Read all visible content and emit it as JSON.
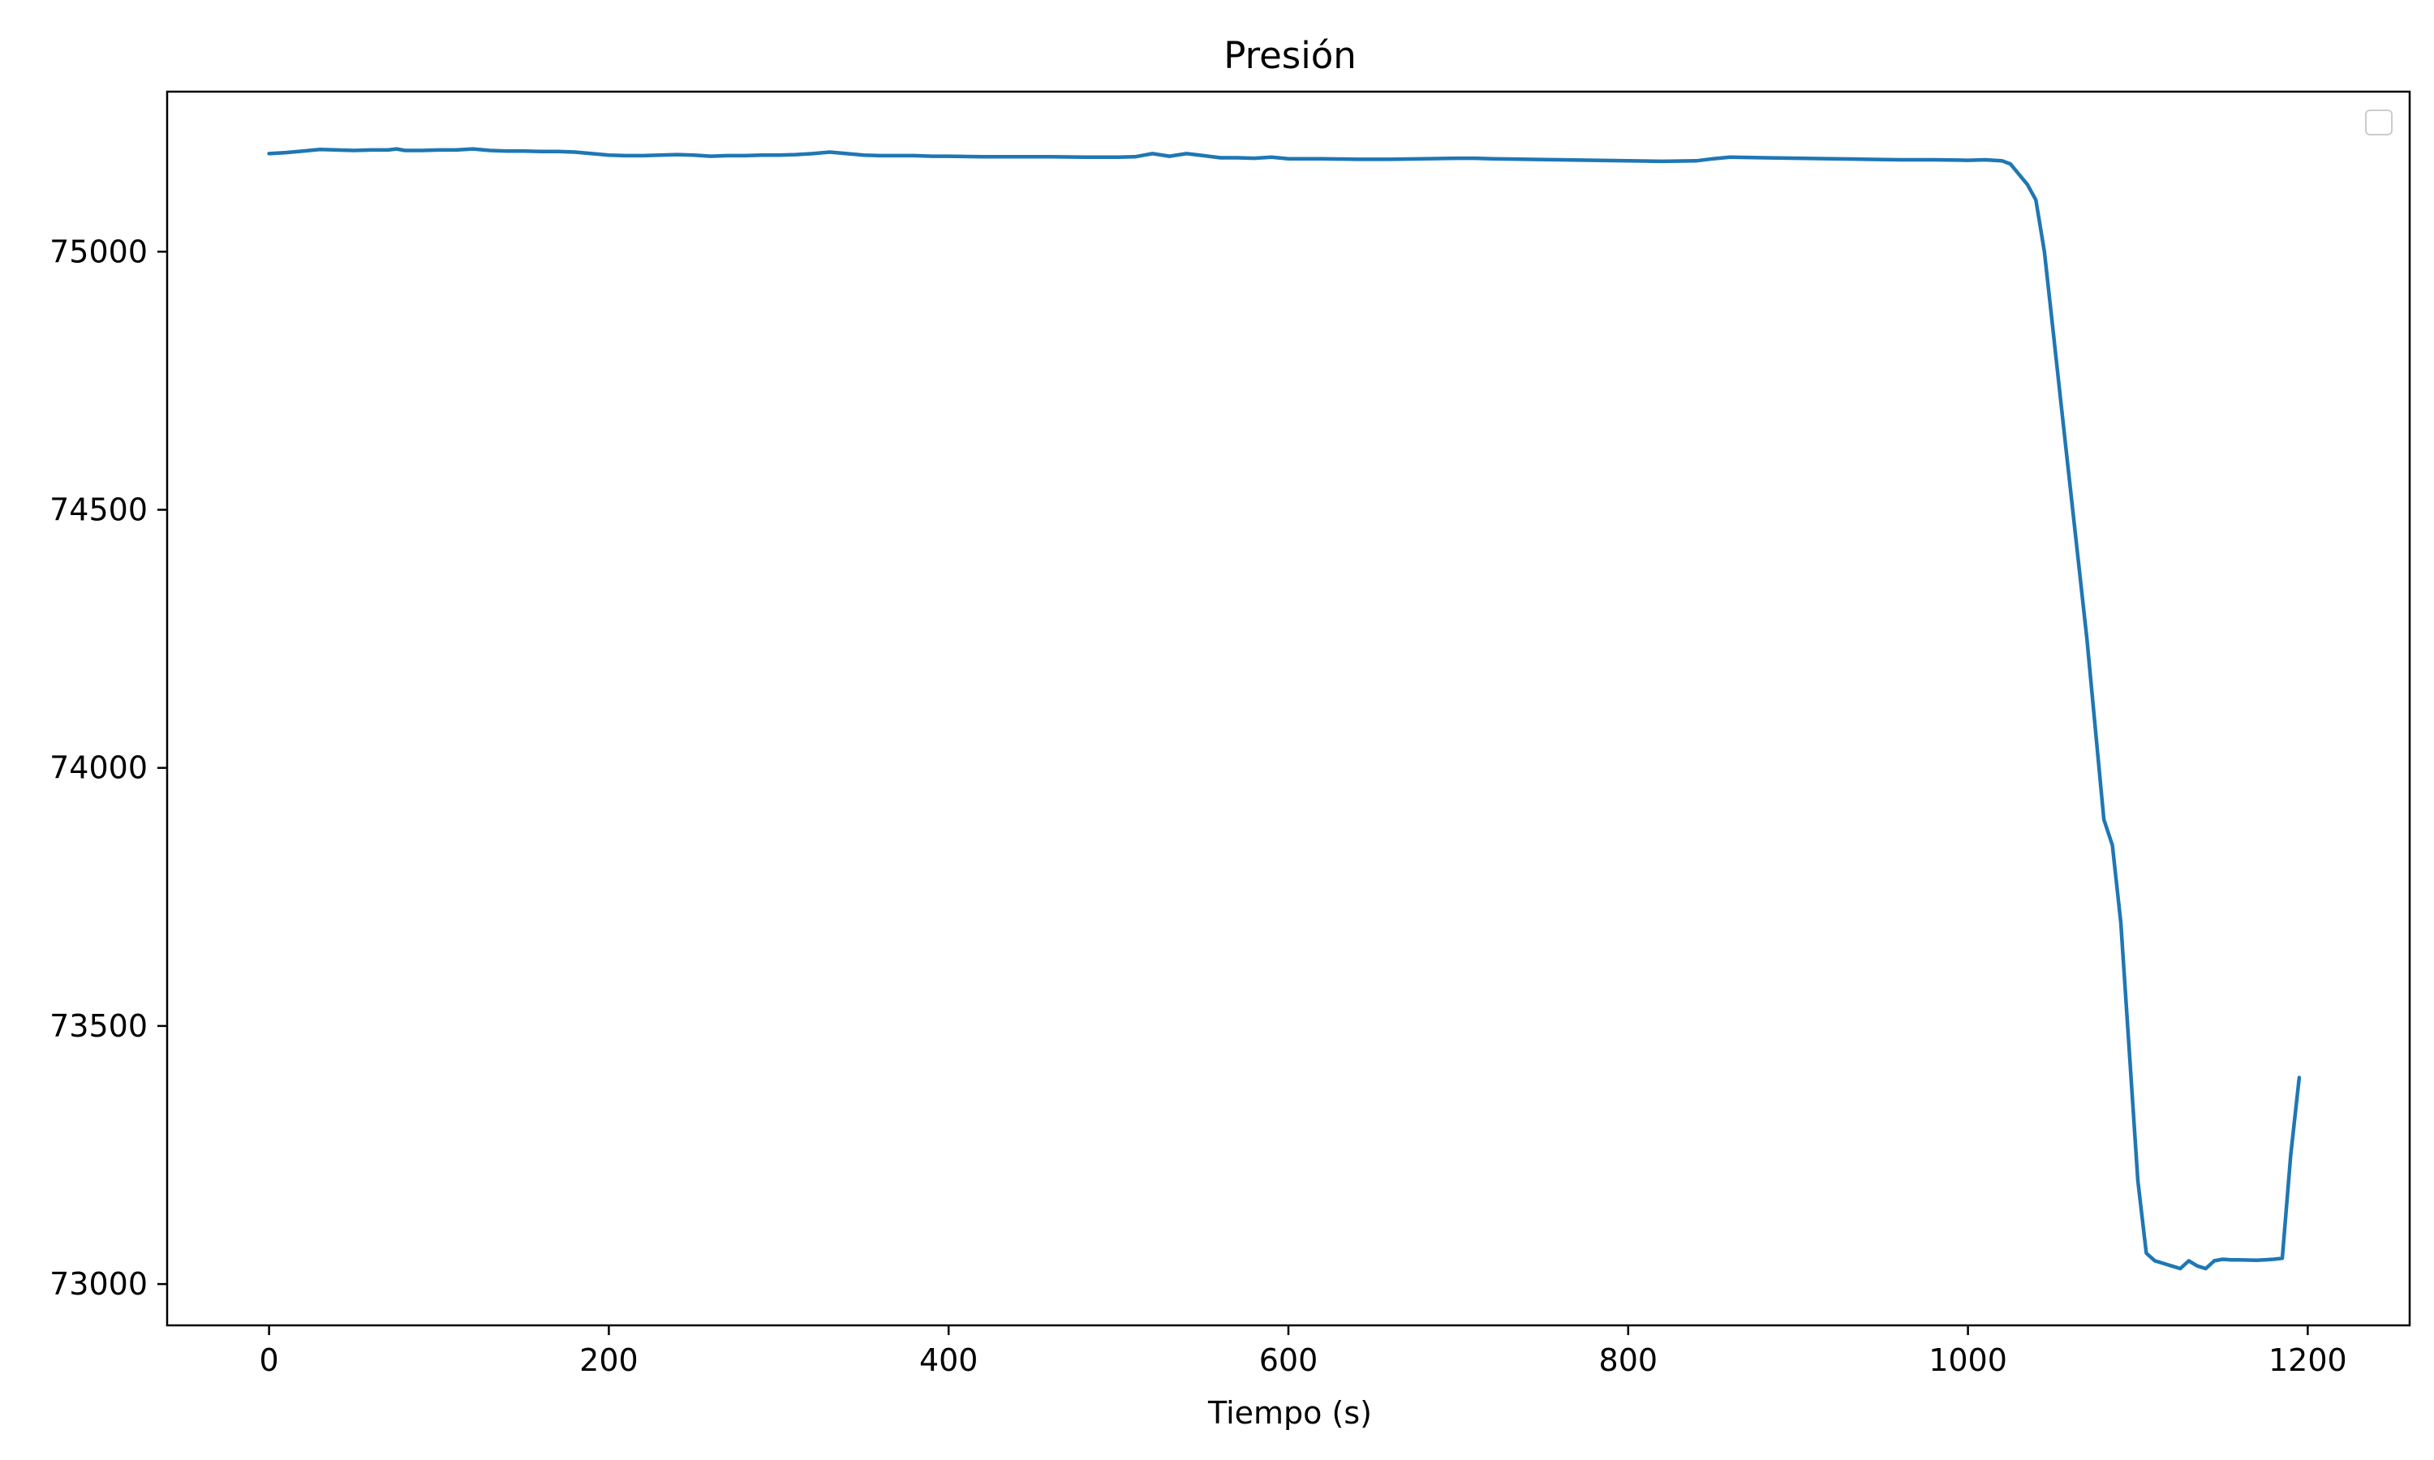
{
  "chart_data": {
    "type": "line",
    "title": "Presión",
    "xlabel": "Tiempo (s)",
    "ylabel": "",
    "xlim": [
      -60,
      1260
    ],
    "ylim": [
      72920,
      75310
    ],
    "xticks": [
      0,
      200,
      400,
      600,
      800,
      1000,
      1200
    ],
    "yticks": [
      73000,
      73500,
      74000,
      74500,
      75000
    ],
    "xtick_labels": [
      "0",
      "200",
      "400",
      "600",
      "800",
      "1000",
      "1200"
    ],
    "ytick_labels": [
      "73000",
      "73500",
      "74000",
      "74500",
      "75000"
    ],
    "grid": false,
    "legend": "top-right, empty",
    "colors": {
      "series": "#1f77b4",
      "axes": "#000000"
    },
    "series": [
      {
        "x": [
          0,
          10,
          20,
          30,
          40,
          50,
          60,
          70,
          75,
          80,
          90,
          100,
          110,
          120,
          130,
          140,
          150,
          160,
          170,
          180,
          190,
          200,
          210,
          220,
          230,
          240,
          250,
          260,
          270,
          280,
          290,
          300,
          310,
          320,
          330,
          340,
          350,
          360,
          370,
          380,
          390,
          400,
          420,
          440,
          460,
          480,
          500,
          510,
          520,
          530,
          540,
          550,
          560,
          570,
          580,
          590,
          600,
          620,
          640,
          660,
          680,
          700,
          710,
          720,
          740,
          760,
          780,
          800,
          820,
          840,
          850,
          860,
          880,
          900,
          920,
          940,
          960,
          980,
          1000,
          1010,
          1020,
          1025,
          1030,
          1035,
          1040,
          1045,
          1050,
          1055,
          1060,
          1070,
          1080,
          1085,
          1090,
          1095,
          1100,
          1105,
          1110,
          1115,
          1120,
          1125,
          1130,
          1135,
          1140,
          1145,
          1150,
          1155,
          1160,
          1170,
          1180,
          1185,
          1190,
          1195
        ],
        "y": [
          75190,
          75192,
          75195,
          75198,
          75197,
          75196,
          75197,
          75197,
          75199,
          75196,
          75196,
          75197,
          75197,
          75199,
          75196,
          75195,
          75195,
          75194,
          75194,
          75193,
          75190,
          75187,
          75186,
          75186,
          75187,
          75188,
          75187,
          75185,
          75186,
          75186,
          75187,
          75187,
          75188,
          75190,
          75193,
          75190,
          75187,
          75186,
          75186,
          75186,
          75185,
          75185,
          75184,
          75184,
          75184,
          75183,
          75183,
          75184,
          75190,
          75185,
          75190,
          75186,
          75182,
          75182,
          75181,
          75183,
          75180,
          75180,
          75179,
          75179,
          75180,
          75181,
          75181,
          75180,
          75179,
          75178,
          75177,
          75176,
          75175,
          75176,
          75180,
          75183,
          75182,
          75181,
          75180,
          75179,
          75178,
          75178,
          75177,
          75178,
          75176,
          75170,
          75150,
          75130,
          75100,
          75000,
          74850,
          74700,
          74550,
          74250,
          73900,
          73850,
          73700,
          73450,
          73200,
          73060,
          73045,
          73040,
          73035,
          73030,
          73045,
          73035,
          73030,
          73045,
          73048,
          73047,
          73047,
          73046,
          73048,
          73050,
          73250,
          73400
        ]
      }
    ]
  }
}
